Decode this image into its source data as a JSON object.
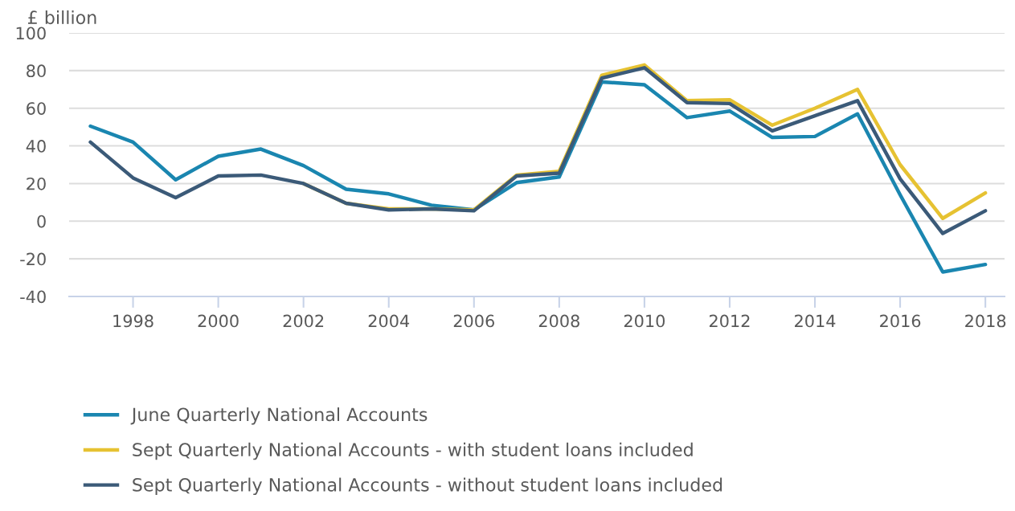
{
  "chart_data": {
    "type": "line",
    "ylabel": "£ billion",
    "x": [
      1997,
      1998,
      1999,
      2000,
      2001,
      2002,
      2003,
      2004,
      2005,
      2006,
      2007,
      2008,
      2009,
      2010,
      2011,
      2012,
      2013,
      2014,
      2015,
      2016,
      2017,
      2018
    ],
    "series": [
      {
        "name": "June Quarterly National Accounts",
        "color": "#1a86b0",
        "values": [
          50.5,
          42,
          22,
          34.5,
          38.3,
          29.5,
          17,
          14.5,
          8.5,
          6,
          20.5,
          23.5,
          74,
          72.5,
          55,
          58.5,
          44.5,
          45,
          57,
          14,
          -27,
          -23
        ]
      },
      {
        "name": "Sept Quarterly National Accounts - with student loans included",
        "color": "#e6c232",
        "values": [
          null,
          null,
          null,
          null,
          null,
          20,
          9.5,
          6.5,
          6.5,
          6,
          24.5,
          26.5,
          77.5,
          83,
          64,
          64.5,
          51,
          60,
          70,
          30,
          1.5,
          15
        ]
      },
      {
        "name": "Sept Quarterly National Accounts - without student loans included",
        "color": "#3b5a78",
        "values": [
          42,
          23,
          12.5,
          24,
          24.5,
          20,
          9.5,
          6,
          6.5,
          5.5,
          24,
          25.5,
          76,
          81.5,
          63,
          62.5,
          48,
          56,
          64,
          22.5,
          -6.5,
          5.5
        ]
      }
    ],
    "xlim": [
      1996.5,
      2018.45
    ],
    "xticks": [
      1998,
      2000,
      2002,
      2004,
      2006,
      2008,
      2010,
      2012,
      2014,
      2016,
      2018
    ],
    "ylim": [
      -40,
      100
    ],
    "yticks": [
      -40,
      -20,
      0,
      20,
      40,
      60,
      80,
      100
    ],
    "grid": "y",
    "legend": "bottom",
    "marker": "none",
    "line_style": "solid"
  }
}
